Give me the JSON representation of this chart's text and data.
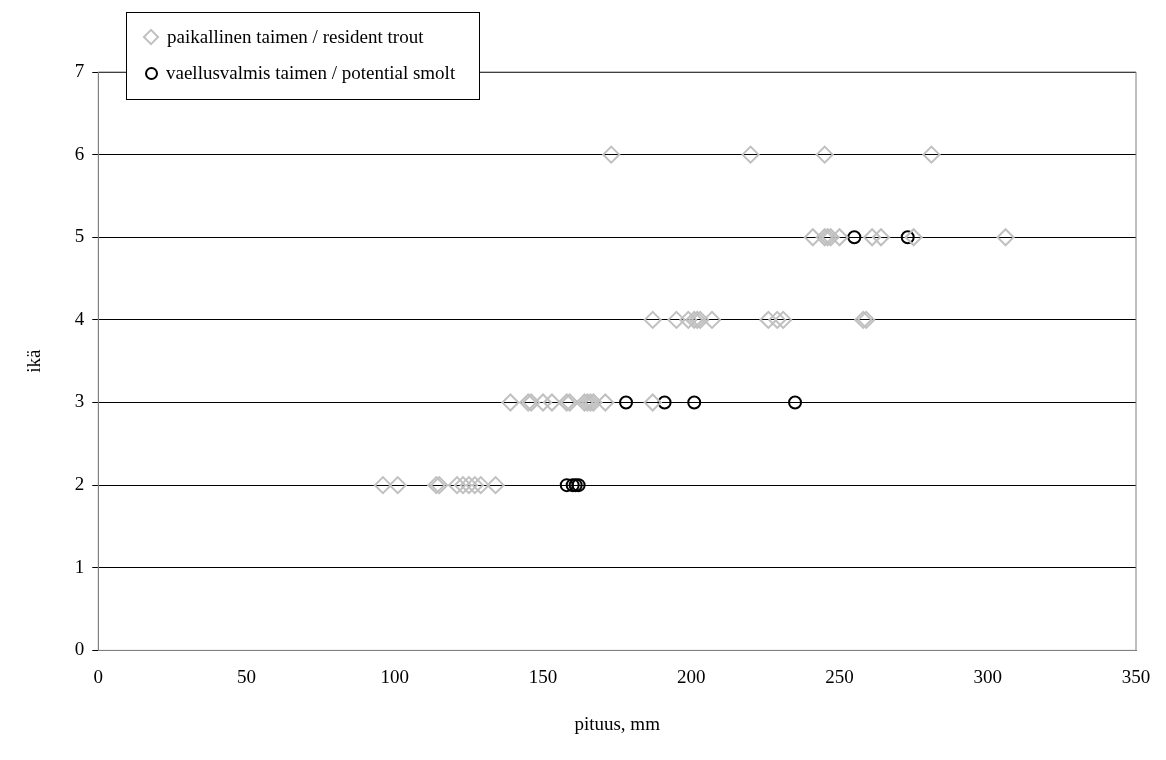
{
  "chart_data": {
    "type": "scatter",
    "xlabel": "pituus, mm",
    "ylabel": "ikä",
    "xlim": [
      0,
      350
    ],
    "xticks": [
      0,
      50,
      100,
      150,
      200,
      250,
      300,
      350
    ],
    "ylim": [
      0,
      7
    ],
    "yticks": [
      0,
      1,
      2,
      3,
      4,
      5,
      6,
      7
    ],
    "grid": "y",
    "legend": "top left",
    "series": [
      {
        "name": "paikallinen taimen / resident trout",
        "color": "#c0c0c0",
        "marker": "diamond",
        "x": [
          96,
          101,
          114,
          115,
          121,
          123,
          125,
          127,
          129,
          134,
          139,
          145,
          146,
          150,
          153,
          158,
          159,
          164,
          165,
          166,
          167,
          171,
          187,
          187,
          195,
          199,
          201,
          202,
          203,
          207,
          226,
          229,
          231,
          258,
          259,
          241,
          245,
          246,
          247,
          250,
          261,
          264,
          275,
          306,
          173,
          220,
          245,
          281
        ],
        "values": [
          2,
          2,
          2,
          2,
          2,
          2,
          2,
          2,
          2,
          2,
          3,
          3,
          3,
          3,
          3,
          3,
          3,
          3,
          3,
          3,
          3,
          3,
          3,
          4,
          4,
          4,
          4,
          4,
          4,
          4,
          4,
          4,
          4,
          4,
          4,
          5,
          5,
          5,
          5,
          5,
          5,
          5,
          5,
          5,
          6,
          6,
          6,
          6
        ]
      },
      {
        "name": "vaellusvalmis taimen / potential smolt",
        "color": "#000000",
        "marker": "circle",
        "x": [
          158,
          160,
          161,
          162,
          178,
          191,
          201,
          235,
          255,
          273
        ],
        "values": [
          2,
          2,
          2,
          2,
          3,
          3,
          3,
          3,
          5,
          5
        ]
      }
    ]
  }
}
